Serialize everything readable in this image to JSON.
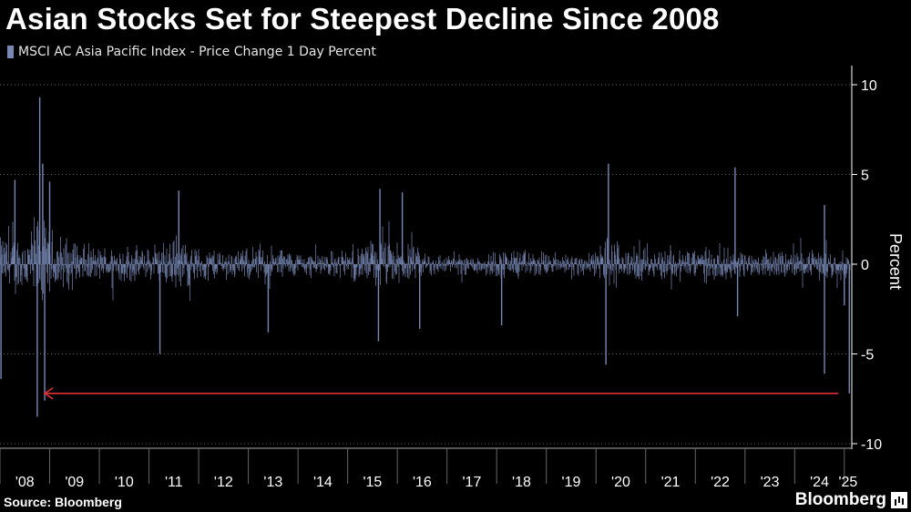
{
  "header": {
    "title": "Asian Stocks Set for Steepest Decline Since 2008",
    "legend_label": "MSCI AC Asia Pacific Index - Price Change 1 Day Percent"
  },
  "footer": {
    "source": "Source: Bloomberg",
    "brand": "Bloomberg"
  },
  "colors": {
    "series": "#7788b5",
    "annotation_arrow": "#e03030",
    "grid": "#666666",
    "axis_text": "#ffffff"
  },
  "chart_data": {
    "type": "bar",
    "title": "Asian Stocks Set for Steepest Decline Since 2008",
    "series": [
      {
        "name": "MSCI AC Asia Pacific Index - Price Change 1 Day Percent"
      }
    ],
    "ylabel": "Percent",
    "ylim": [
      -10,
      10
    ],
    "yticks": [
      "10",
      "5",
      "0",
      "-5",
      "-10"
    ],
    "ytick_values": [
      10,
      5,
      0,
      -5,
      -10
    ],
    "xlim": [
      2008.0,
      2025.15
    ],
    "xticks": [
      "'08",
      "'09",
      "'10",
      "'11",
      "'12",
      "'13",
      "'14",
      "'15",
      "'16",
      "'17",
      "'18",
      "'19",
      "'20",
      "'21",
      "'22",
      "'23",
      "'24",
      "'25"
    ],
    "xtick_years": [
      2008,
      2009,
      2010,
      2011,
      2012,
      2013,
      2014,
      2015,
      2016,
      2017,
      2018,
      2019,
      2020,
      2021,
      2022,
      2023,
      2024,
      2025
    ],
    "grid": "horizontal dotted",
    "legend_position": "top-left",
    "volatility_profile": [
      {
        "year": 2008.0,
        "amp": 1.9
      },
      {
        "year": 2008.5,
        "amp": 2.2
      },
      {
        "year": 2008.75,
        "amp": 3.4
      },
      {
        "year": 2009.0,
        "amp": 2.4
      },
      {
        "year": 2009.5,
        "amp": 1.5
      },
      {
        "year": 2010.0,
        "amp": 1.1
      },
      {
        "year": 2010.4,
        "amp": 1.4
      },
      {
        "year": 2011.0,
        "amp": 1.0
      },
      {
        "year": 2011.6,
        "amp": 1.9
      },
      {
        "year": 2012.0,
        "amp": 1.1
      },
      {
        "year": 2013.0,
        "amp": 1.0
      },
      {
        "year": 2013.4,
        "amp": 1.3
      },
      {
        "year": 2014.0,
        "amp": 0.8
      },
      {
        "year": 2015.0,
        "amp": 0.9
      },
      {
        "year": 2015.6,
        "amp": 1.8
      },
      {
        "year": 2016.0,
        "amp": 1.4
      },
      {
        "year": 2016.6,
        "amp": 0.9
      },
      {
        "year": 2017.0,
        "amp": 0.6
      },
      {
        "year": 2018.0,
        "amp": 0.9
      },
      {
        "year": 2018.2,
        "amp": 1.1
      },
      {
        "year": 2019.0,
        "amp": 0.8
      },
      {
        "year": 2020.0,
        "amp": 0.8
      },
      {
        "year": 2020.2,
        "amp": 2.3
      },
      {
        "year": 2020.6,
        "amp": 1.1
      },
      {
        "year": 2021.0,
        "amp": 1.0
      },
      {
        "year": 2022.0,
        "amp": 1.2
      },
      {
        "year": 2023.0,
        "amp": 0.9
      },
      {
        "year": 2024.0,
        "amp": 0.9
      },
      {
        "year": 2025.15,
        "amp": 1.0
      }
    ],
    "notable_moves": [
      {
        "year": 2008.02,
        "value": -6.4
      },
      {
        "year": 2008.3,
        "value": 4.7
      },
      {
        "year": 2008.75,
        "value": -8.5
      },
      {
        "year": 2008.8,
        "value": 9.3
      },
      {
        "year": 2008.86,
        "value": 5.6
      },
      {
        "year": 2008.9,
        "value": -7.6
      },
      {
        "year": 2009.0,
        "value": 4.6
      },
      {
        "year": 2011.22,
        "value": -5.0
      },
      {
        "year": 2011.6,
        "value": 4.1
      },
      {
        "year": 2013.4,
        "value": -3.8
      },
      {
        "year": 2015.65,
        "value": 4.2
      },
      {
        "year": 2015.62,
        "value": -4.3
      },
      {
        "year": 2016.1,
        "value": 4.0
      },
      {
        "year": 2016.45,
        "value": -3.6
      },
      {
        "year": 2018.1,
        "value": -3.4
      },
      {
        "year": 2020.2,
        "value": -5.6
      },
      {
        "year": 2020.25,
        "value": 5.6
      },
      {
        "year": 2022.8,
        "value": 5.4
      },
      {
        "year": 2022.85,
        "value": -2.9
      },
      {
        "year": 2024.6,
        "value": -6.1
      },
      {
        "year": 2024.6,
        "value": 3.3
      },
      {
        "year": 2025.0,
        "value": -2.3
      },
      {
        "year": 2025.1,
        "value": -7.2
      }
    ],
    "annotation": {
      "type": "arrow",
      "from_year": 2024.88,
      "to_year": 2008.9,
      "value": -7.2
    }
  }
}
